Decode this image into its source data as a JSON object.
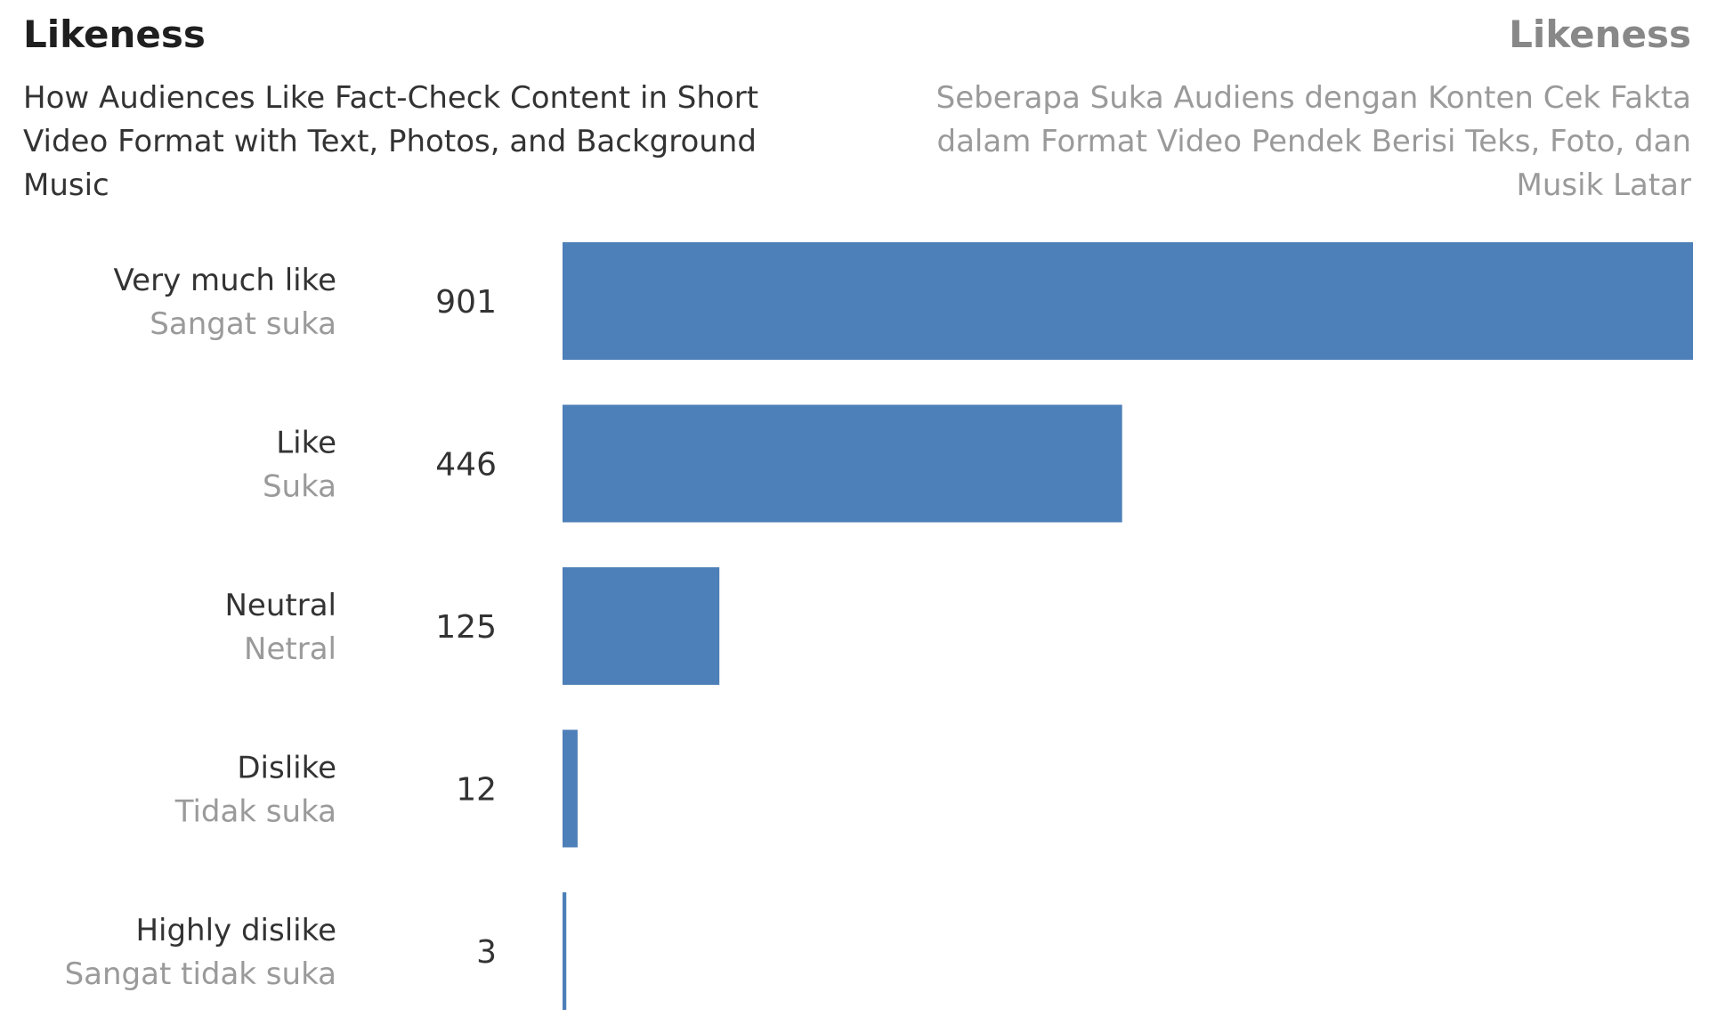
{
  "header": {
    "title_en": "Likeness",
    "title_id": "Likeness",
    "subtitle_en": "How Audiences Like Fact-Check Content in Short Video Format with Text, Photos, and Background Music",
    "subtitle_id": "Seberapa Suka Audiens dengan Konten Cek Fakta dalam Format Video Pendek Berisi Teks, Foto, dan Musik Latar"
  },
  "chart_data": {
    "type": "bar",
    "orientation": "horizontal",
    "title": "Likeness",
    "categories": [
      "Very much like",
      "Like",
      "Neutral",
      "Dislike",
      "Highly dislike"
    ],
    "categories_id": [
      "Sangat suka",
      "Suka",
      "Netral",
      "Tidak suka",
      "Sangat tidak suka"
    ],
    "values": [
      901,
      446,
      125,
      12,
      3
    ],
    "xlim": [
      0,
      901
    ],
    "bar_color": "#4d7fb8",
    "grid": false,
    "legend": "none"
  }
}
